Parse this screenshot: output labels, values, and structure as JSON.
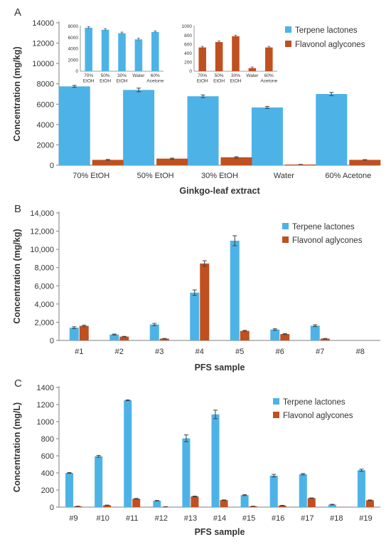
{
  "colors": {
    "terpene": "#4db3e6",
    "flavonol": "#c0501f",
    "axis": "#7f7f7f",
    "errorbar": "#404040"
  },
  "chart_data": [
    {
      "type": "bar",
      "panel": "A",
      "categories": [
        "70% EtOH",
        "50% EtOH",
        "30% EtOH",
        "Water",
        "60% Acetone"
      ],
      "series": [
        {
          "name": "Terpene lactones",
          "values": [
            7750,
            7400,
            6780,
            5680,
            7000
          ],
          "errors": [
            100,
            180,
            130,
            100,
            160
          ]
        },
        {
          "name": "Flavonol aglycones",
          "values": [
            530,
            650,
            780,
            70,
            530
          ],
          "errors": [
            40,
            50,
            60,
            10,
            20
          ]
        }
      ],
      "xlabel": "Ginkgo-leaf extract",
      "ylabel": "Concentration (mg/kg)",
      "ylim": [
        0,
        14000
      ],
      "yticks": [
        "0",
        "2000",
        "4000",
        "6000",
        "8000",
        "10000",
        "12000",
        "14000"
      ],
      "legend": "top-right",
      "insets": [
        {
          "series": "Terpene lactones",
          "categories": [
            "70% EtOH",
            "50% EtOH",
            "30% EtOH",
            "Water",
            "60% Acetone"
          ],
          "values": [
            7750,
            7400,
            6780,
            5680,
            7000
          ],
          "ylim": [
            0,
            8000
          ],
          "yticks": [
            "0",
            "2000",
            "4000",
            "6000",
            "8000"
          ]
        },
        {
          "series": "Flavonol aglycones",
          "categories": [
            "70% EtOH",
            "50% EtOH",
            "30% EtOH",
            "Water",
            "60% Acetone"
          ],
          "values": [
            530,
            650,
            780,
            70,
            530
          ],
          "ylim": [
            0,
            1000
          ],
          "yticks": [
            "0",
            "200",
            "400",
            "600",
            "800",
            "1000"
          ]
        }
      ]
    },
    {
      "type": "bar",
      "panel": "B",
      "categories": [
        "#1",
        "#2",
        "#3",
        "#4",
        "#5",
        "#6",
        "#7",
        "#8"
      ],
      "series": [
        {
          "name": "Terpene lactones",
          "values": [
            1400,
            650,
            1750,
            5250,
            10950,
            1200,
            1620,
            0
          ],
          "errors": [
            100,
            50,
            120,
            300,
            550,
            80,
            100,
            0
          ]
        },
        {
          "name": "Flavonol aglycones",
          "values": [
            1600,
            420,
            200,
            8450,
            1050,
            700,
            200,
            0
          ],
          "errors": [
            80,
            30,
            20,
            300,
            60,
            50,
            20,
            0
          ]
        }
      ],
      "xlabel": "PFS sample",
      "ylabel": "Concentration (mg/kg)",
      "ylim": [
        0,
        14000
      ],
      "yticks": [
        "0",
        "2,000",
        "4,000",
        "6,000",
        "8,000",
        "10,000",
        "12,000",
        "14,000"
      ],
      "legend": "top-right"
    },
    {
      "type": "bar",
      "panel": "C",
      "categories": [
        "#9",
        "#10",
        "#11",
        "#12",
        "#13",
        "#14",
        "#15",
        "#16",
        "#17",
        "#18",
        "#19"
      ],
      "series": [
        {
          "name": "Terpene lactones",
          "values": [
            400,
            595,
            1250,
            75,
            805,
            1085,
            140,
            368,
            385,
            30,
            432
          ],
          "errors": [
            5,
            10,
            5,
            3,
            40,
            50,
            5,
            15,
            8,
            3,
            12
          ]
        },
        {
          "name": "Flavonol aglycones",
          "values": [
            10,
            22,
            98,
            4,
            125,
            82,
            10,
            18,
            105,
            2,
            80
          ],
          "errors": [
            1,
            2,
            4,
            1,
            4,
            3,
            1,
            3,
            3,
            0,
            4
          ]
        }
      ],
      "xlabel": "PFS sample",
      "ylabel": "Concentration (mg/L)",
      "ylim": [
        0,
        1400
      ],
      "yticks": [
        "0",
        "200",
        "400",
        "600",
        "800",
        "1000",
        "1200",
        "1400"
      ],
      "legend": "top-right"
    }
  ],
  "panel_letters": [
    "A",
    "B",
    "C"
  ]
}
